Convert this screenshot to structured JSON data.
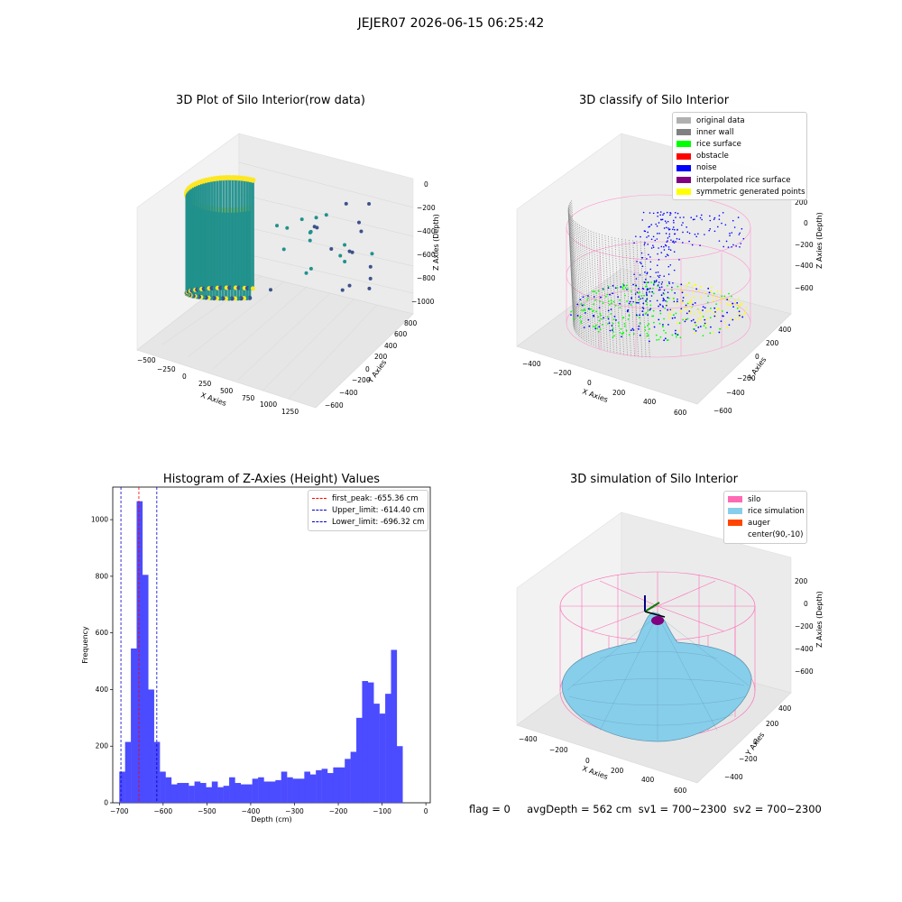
{
  "suptitle": "JEJER07 2026-06-15 06:25:42",
  "footer": "flag = 0     avgDepth = 562 cm  sv1 = 700~2300  sv2 = 700~2300",
  "colors": {
    "hist_bar": "#4b4bff",
    "peak_line": "#ff0000",
    "limit_line": "#0000cc",
    "viridis_low": "#3b528b",
    "viridis_mid": "#21918c",
    "viridis_high": "#fde725"
  },
  "panels": {
    "raw": {
      "title": "3D Plot of Silo Interior(row data)",
      "x_label": "X Axies",
      "y_label": "Y Axies",
      "z_label": "Z Axies (Depth)",
      "x_ticks": [
        "−500",
        "−250",
        "0",
        "250",
        "500",
        "750",
        "1000",
        "1250"
      ],
      "y_ticks": [
        "800",
        "600",
        "400",
        "200",
        "0",
        "−200",
        "−400",
        "−600"
      ],
      "z_ticks": [
        "0",
        "−200",
        "−400",
        "−600",
        "−800",
        "−1000"
      ]
    },
    "classify": {
      "title": "3D classify of Silo Interior",
      "x_label": "X Axies",
      "y_label": "Y Axies",
      "z_label": "Z Axies (Depth)",
      "x_ticks": [
        "−400",
        "−200",
        "0",
        "200",
        "400",
        "600"
      ],
      "y_ticks": [
        "400",
        "200",
        "0",
        "−200",
        "−400",
        "−600"
      ],
      "z_ticks": [
        "200",
        "0",
        "−200",
        "−400",
        "−600"
      ],
      "legend": [
        {
          "label": "original data",
          "color": "#b0b0b0"
        },
        {
          "label": "inner wall",
          "color": "#808080"
        },
        {
          "label": "rice surface",
          "color": "#00ff00"
        },
        {
          "label": "obstacle",
          "color": "#ff0000"
        },
        {
          "label": "noise",
          "color": "#0000ff"
        },
        {
          "label": "interpolated rice surface",
          "color": "#800080"
        },
        {
          "label": "symmetric generated points",
          "color": "#ffff00"
        }
      ]
    },
    "simulation": {
      "title": "3D simulation of Silo Interior",
      "x_label": "X Axies",
      "y_label": "Y Axies",
      "z_label": "Z Axies (Depth)",
      "x_ticks": [
        "−400",
        "−200",
        "0",
        "200",
        "400",
        "600"
      ],
      "y_ticks": [
        "400",
        "200",
        "0",
        "−200",
        "−400"
      ],
      "z_ticks": [
        "200",
        "0",
        "−200",
        "−400",
        "−600"
      ],
      "legend": [
        {
          "label": "silo",
          "color": "#ff69b4"
        },
        {
          "label": "rice simulation",
          "color": "#87ceeb"
        },
        {
          "label": "auger",
          "color": "#ff4500"
        },
        {
          "label": "center(90,-10)",
          "color": "#ffffff"
        }
      ]
    }
  },
  "chart_data": {
    "type": "bar",
    "title": "Histogram of Z-Axies (Height) Values",
    "xlabel": "Depth (cm)",
    "ylabel": "Frequency",
    "xlim": [
      -715,
      10
    ],
    "ylim": [
      0,
      1115
    ],
    "x_ticks": [
      -700,
      -600,
      -500,
      -400,
      -300,
      -200,
      -100,
      0
    ],
    "y_ticks": [
      0,
      200,
      400,
      600,
      800,
      1000
    ],
    "bin_edges_start": -700,
    "bin_width": 13.2,
    "values": [
      110,
      215,
      545,
      1065,
      805,
      400,
      215,
      110,
      90,
      65,
      70,
      70,
      60,
      75,
      70,
      55,
      75,
      55,
      60,
      90,
      70,
      65,
      65,
      85,
      90,
      75,
      75,
      80,
      110,
      90,
      85,
      85,
      110,
      100,
      115,
      120,
      105,
      125,
      125,
      155,
      180,
      300,
      430,
      425,
      350,
      315,
      385,
      540,
      200
    ],
    "bar_color": "#4b4bff",
    "lines": [
      {
        "label": "first_peak: -655.36 cm",
        "x": -655.36,
        "color": "#ff0000"
      },
      {
        "label": "Upper_limit: -614.40 cm",
        "x": -614.4,
        "color": "#0000cc"
      },
      {
        "label": "Lower_limit: -696.32 cm",
        "x": -696.32,
        "color": "#0000cc"
      }
    ],
    "legend_position": "upper right",
    "grid": false
  }
}
